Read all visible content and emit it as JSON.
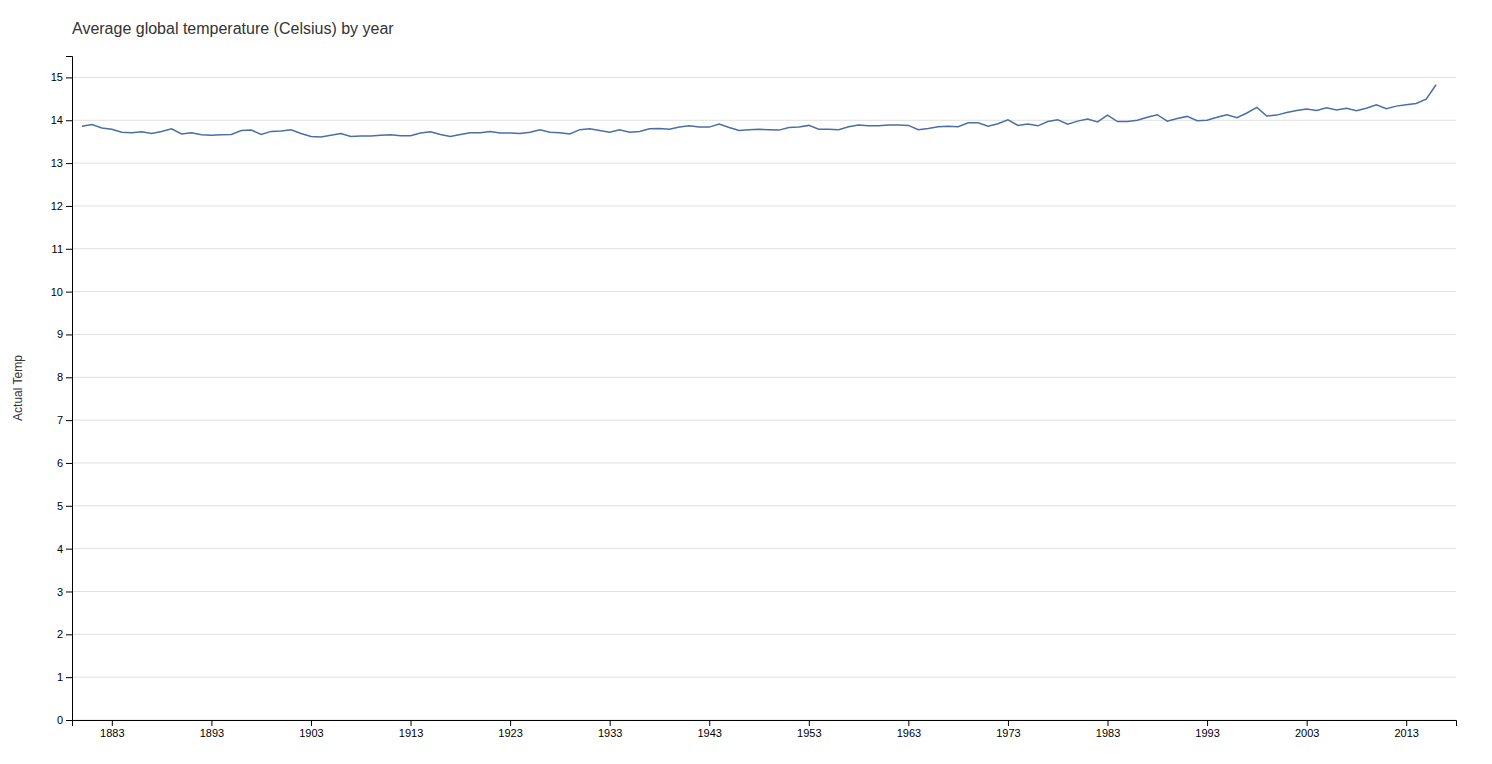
{
  "chart_data": {
    "type": "line",
    "title": "Average global temperature (Celsius) by year",
    "ylabel": "Actual Temp",
    "color": "#4a6fa5",
    "grid": true,
    "xlim": [
      1879,
      2018
    ],
    "xticks": [
      1883,
      1893,
      1903,
      1913,
      1923,
      1933,
      1943,
      1953,
      1963,
      1973,
      1983,
      1993,
      2003,
      2013
    ],
    "ylim": [
      0,
      15.5
    ],
    "yticks": [
      0,
      1,
      2,
      3,
      4,
      5,
      6,
      7,
      8,
      9,
      10,
      11,
      12,
      13,
      14,
      15
    ],
    "x": [
      1880,
      1881,
      1882,
      1883,
      1884,
      1885,
      1886,
      1887,
      1888,
      1889,
      1890,
      1891,
      1892,
      1893,
      1894,
      1895,
      1896,
      1897,
      1898,
      1899,
      1900,
      1901,
      1902,
      1903,
      1904,
      1905,
      1906,
      1907,
      1908,
      1909,
      1910,
      1911,
      1912,
      1913,
      1914,
      1915,
      1916,
      1917,
      1918,
      1919,
      1920,
      1921,
      1922,
      1923,
      1924,
      1925,
      1926,
      1927,
      1928,
      1929,
      1930,
      1931,
      1932,
      1933,
      1934,
      1935,
      1936,
      1937,
      1938,
      1939,
      1940,
      1941,
      1942,
      1943,
      1944,
      1945,
      1946,
      1947,
      1948,
      1949,
      1950,
      1951,
      1952,
      1953,
      1954,
      1955,
      1956,
      1957,
      1958,
      1959,
      1960,
      1961,
      1962,
      1963,
      1964,
      1965,
      1966,
      1967,
      1968,
      1969,
      1970,
      1971,
      1972,
      1973,
      1974,
      1975,
      1976,
      1977,
      1978,
      1979,
      1980,
      1981,
      1982,
      1983,
      1984,
      1985,
      1986,
      1987,
      1988,
      1989,
      1990,
      1991,
      1992,
      1993,
      1994,
      1995,
      1996,
      1997,
      1998,
      1999,
      2000,
      2001,
      2002,
      2003,
      2004,
      2005,
      2006,
      2007,
      2008,
      2009,
      2010,
      2011,
      2012,
      2013,
      2014,
      2015,
      2016
    ],
    "values": [
      13.86,
      13.9,
      13.82,
      13.79,
      13.72,
      13.71,
      13.73,
      13.69,
      13.74,
      13.8,
      13.68,
      13.71,
      13.66,
      13.65,
      13.66,
      13.67,
      13.76,
      13.77,
      13.67,
      13.74,
      13.75,
      13.78,
      13.69,
      13.62,
      13.61,
      13.65,
      13.69,
      13.62,
      13.63,
      13.63,
      13.65,
      13.66,
      13.64,
      13.64,
      13.7,
      13.73,
      13.67,
      13.62,
      13.67,
      13.71,
      13.71,
      13.74,
      13.7,
      13.7,
      13.69,
      13.72,
      13.78,
      13.72,
      13.71,
      13.68,
      13.78,
      13.8,
      13.76,
      13.72,
      13.78,
      13.72,
      13.74,
      13.8,
      13.81,
      13.79,
      13.84,
      13.87,
      13.84,
      13.84,
      13.91,
      13.83,
      13.76,
      13.78,
      13.79,
      13.78,
      13.77,
      13.83,
      13.84,
      13.88,
      13.79,
      13.79,
      13.78,
      13.85,
      13.89,
      13.87,
      13.87,
      13.89,
      13.89,
      13.88,
      13.78,
      13.81,
      13.85,
      13.86,
      13.85,
      13.94,
      13.94,
      13.86,
      13.92,
      14.01,
      13.88,
      13.91,
      13.87,
      13.97,
      14.01,
      13.91,
      13.98,
      14.03,
      13.96,
      14.12,
      13.97,
      13.97,
      14.0,
      14.07,
      14.13,
      13.98,
      14.04,
      14.09,
      13.99,
      14.0,
      14.07,
      14.13,
      14.06,
      14.17,
      14.3,
      14.1,
      14.12,
      14.18,
      14.23,
      14.26,
      14.23,
      14.29,
      14.24,
      14.28,
      14.22,
      14.28,
      14.36,
      14.27,
      14.33,
      14.36,
      14.39,
      14.49,
      14.83
    ]
  }
}
